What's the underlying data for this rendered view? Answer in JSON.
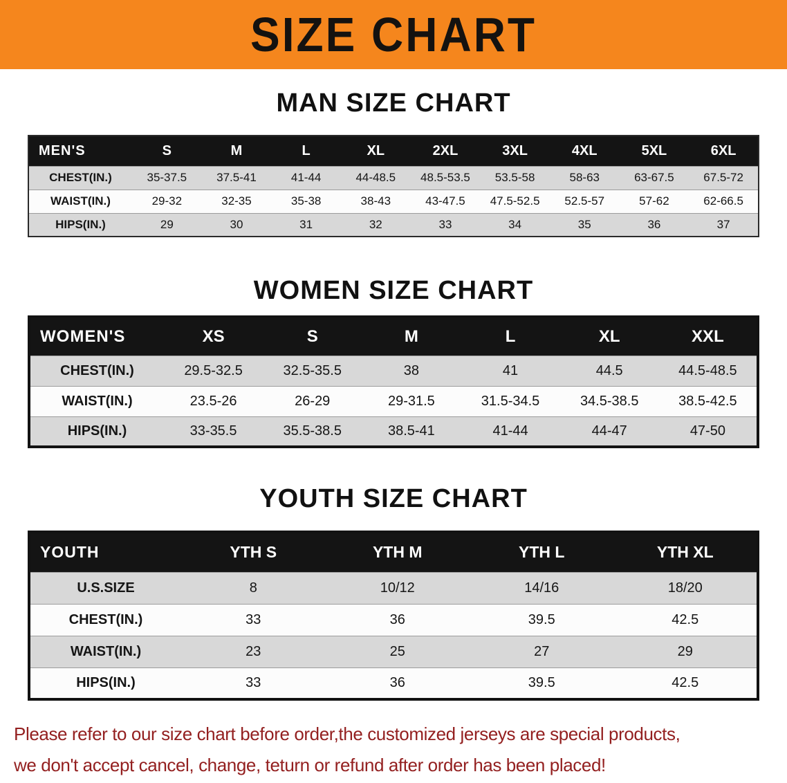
{
  "banner": {
    "title": "SIZE CHART"
  },
  "men": {
    "heading": "MAN SIZE CHART",
    "header": [
      "MEN'S",
      "S",
      "M",
      "L",
      "XL",
      "2XL",
      "3XL",
      "4XL",
      "5XL",
      "6XL"
    ],
    "rows": [
      [
        "CHEST(IN.)",
        "35-37.5",
        "37.5-41",
        "41-44",
        "44-48.5",
        "48.5-53.5",
        "53.5-58",
        "58-63",
        "63-67.5",
        "67.5-72"
      ],
      [
        "WAIST(IN.)",
        "29-32",
        "32-35",
        "35-38",
        "38-43",
        "43-47.5",
        "47.5-52.5",
        "52.5-57",
        "57-62",
        "62-66.5"
      ],
      [
        "HIPS(IN.)",
        "29",
        "30",
        "31",
        "32",
        "33",
        "34",
        "35",
        "36",
        "37"
      ]
    ]
  },
  "women": {
    "heading": "WOMEN SIZE CHART",
    "header": [
      "WOMEN'S",
      "XS",
      "S",
      "M",
      "L",
      "XL",
      "XXL"
    ],
    "rows": [
      [
        "CHEST(IN.)",
        "29.5-32.5",
        "32.5-35.5",
        "38",
        "41",
        "44.5",
        "44.5-48.5"
      ],
      [
        "WAIST(IN.)",
        "23.5-26",
        "26-29",
        "29-31.5",
        "31.5-34.5",
        "34.5-38.5",
        "38.5-42.5"
      ],
      [
        "HIPS(IN.)",
        "33-35.5",
        "35.5-38.5",
        "38.5-41",
        "41-44",
        "44-47",
        "47-50"
      ]
    ]
  },
  "youth": {
    "heading": "YOUTH SIZE CHART",
    "header": [
      "YOUTH",
      "YTH S",
      "YTH M",
      "YTH L",
      "YTH XL"
    ],
    "rows": [
      [
        "U.S.SIZE",
        "8",
        "10/12",
        "14/16",
        "18/20"
      ],
      [
        "CHEST(IN.)",
        "33",
        "36",
        "39.5",
        "42.5"
      ],
      [
        "WAIST(IN.)",
        "23",
        "25",
        "27",
        "29"
      ],
      [
        "HIPS(IN.)",
        "33",
        "36",
        "39.5",
        "42.5"
      ]
    ]
  },
  "footer": {
    "line1": "Please refer to our size chart before order,the customized jerseys are special products,",
    "line2": "we don't accept cancel, change, teturn or refund after order has been placed!"
  },
  "colors": {
    "banner_bg": "#F5861D",
    "banner_text": "#141210",
    "table_header_bg": "#141414",
    "row_gray": "#D8D8D8",
    "row_white": "#FCFCFC",
    "footer_text": "#931F1F"
  }
}
